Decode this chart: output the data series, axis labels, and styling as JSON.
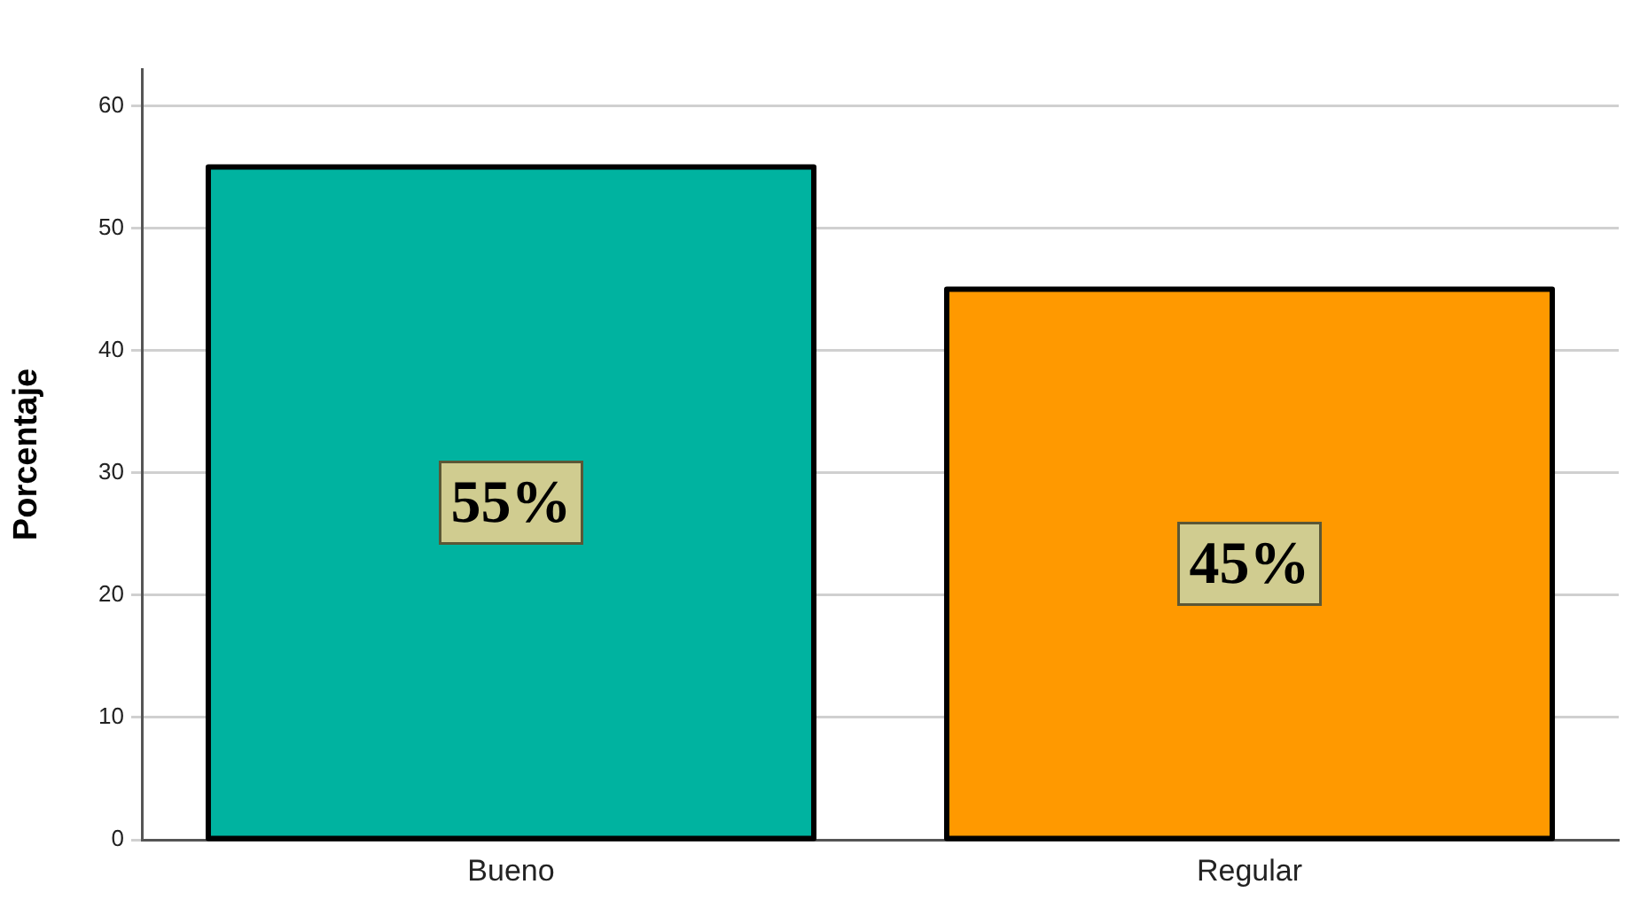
{
  "chart_data": {
    "type": "bar",
    "categories": [
      "Bueno",
      "Regular"
    ],
    "values": [
      55,
      45
    ],
    "colors": [
      "#00b3a0",
      "#ff9900"
    ],
    "value_labels": [
      "55%",
      "45%"
    ],
    "ylabel": "Porcentaje",
    "ylim": [
      0,
      63
    ],
    "yticks": [
      0,
      10,
      20,
      30,
      40,
      50,
      60
    ],
    "grid": "y",
    "legend": false
  }
}
